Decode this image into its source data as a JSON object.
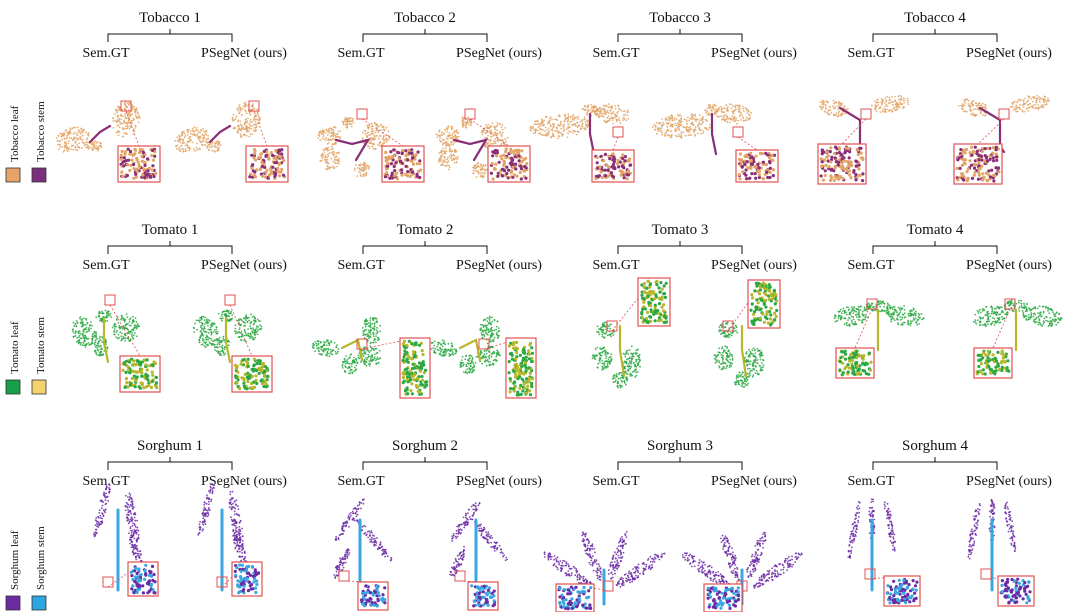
{
  "rows": [
    {
      "key": "tobacco",
      "legend": {
        "labels": [
          "Tobacco leaf",
          "Tobacco stem"
        ],
        "colors": [
          "#e8a368",
          "#7b2d7e"
        ]
      },
      "point_colors": [
        "#e2a466",
        "#8a2e78"
      ],
      "groups": [
        {
          "title": "Tobacco 1",
          "left": "Sem.GT",
          "right": "PSegNet (ours)"
        },
        {
          "title": "Tobacco 2",
          "left": "Sem.GT",
          "right": "PSegNet (ours)"
        },
        {
          "title": "Tobacco 3",
          "left": "Sem.GT",
          "right": "PSegNet (ours)"
        },
        {
          "title": "Tobacco 4",
          "left": "Sem.GT",
          "right": "PSegNet (ours)"
        }
      ]
    },
    {
      "key": "tomato",
      "legend": {
        "labels": [
          "Tomato leaf",
          "Tomato stem"
        ],
        "colors": [
          "#16a04a",
          "#f3d36a"
        ]
      },
      "point_colors": [
        "#2aa842",
        "#b8b62a"
      ],
      "groups": [
        {
          "title": "Tomato 1",
          "left": "Sem.GT",
          "right": "PSegNet (ours)"
        },
        {
          "title": "Tomato 2",
          "left": "Sem.GT",
          "right": "PSegNet (ours)"
        },
        {
          "title": "Tomato 3",
          "left": "Sem.GT",
          "right": "PSegNet (ours)"
        },
        {
          "title": "Tomato 4",
          "left": "Sem.GT",
          "right": "PSegNet (ours)"
        }
      ]
    },
    {
      "key": "sorghum",
      "legend": {
        "labels": [
          "Sorghum leaf",
          "Sorghum stem"
        ],
        "colors": [
          "#6a2aa0",
          "#2aa6e0"
        ]
      },
      "point_colors": [
        "#6b2aa6",
        "#3aa8e0"
      ],
      "groups": [
        {
          "title": "Sorghum 1",
          "left": "Sem.GT",
          "right": "PSegNet (ours)"
        },
        {
          "title": "Sorghum 2",
          "left": "Sem.GT",
          "right": "PSegNet (ours)"
        },
        {
          "title": "Sorghum 3",
          "left": "Sem.GT",
          "right": "PSegNet (ours)"
        },
        {
          "title": "Sorghum 4",
          "left": "Sem.GT",
          "right": "PSegNet (ours)"
        }
      ]
    }
  ],
  "zoom_box_color": "#e05050"
}
